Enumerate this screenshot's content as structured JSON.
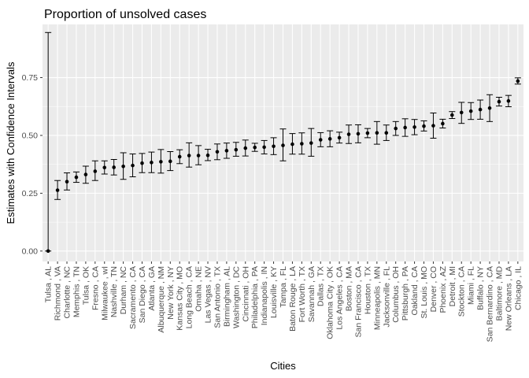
{
  "chart_data": {
    "type": "scatter",
    "title": "Proportion of unsolved cases",
    "xlabel": "Cities",
    "ylabel": "Estimates with Confidence Intervals",
    "ylim": [
      -0.045,
      0.98
    ],
    "yticks": [
      0.0,
      0.25,
      0.5,
      0.75
    ],
    "ytick_labels": [
      "0.00",
      "0.25",
      "0.50",
      "0.75"
    ],
    "grid": true,
    "background": "#ebebeb",
    "point_color": "#000000",
    "categories": [
      "Tulsa , AL",
      "Richmond , VA",
      "Charlotte , NC",
      "Memphis , TN",
      "Tulsa , OK",
      "Fresno , CA",
      "Milwaukee , wI",
      "Nashville , TN",
      "Durham , NC",
      "Sacramento , CA",
      "San Diego , CA",
      "Atlanta , GA",
      "Albuquerque , NM",
      "New York , NY",
      "Kansas City , MO",
      "Long Beach , CA",
      "Omaha , NE",
      "Las Vegas , NV",
      "San Antonio , TX",
      "Birmingham , AL",
      "Washington , DC",
      "Cincinnati , OH",
      "Philadelphia , PA",
      "Indianapolis , IN",
      "Louisville , KY",
      "Tampa , FL",
      "Baton Rouge , LA",
      "Fort Worth , TX",
      "Savannah , GA",
      "Dallas , TX",
      "Oklahoma City , OK",
      "Los Angeles , CA",
      "Boston , MA",
      "San Francisco , CA",
      "Houston , TX",
      "Minneapolis , MN",
      "Jacksonville , FL",
      "Columbus , OH",
      "Pittsburgh , PA",
      "Oakland , CA",
      "St. Louis , MO",
      "Denver , CO",
      "Phoenix , AZ",
      "Detroit , MI",
      "Stockton , CA",
      "Miami , FL",
      "Buffalo , NY",
      "San Bernardino , CA",
      "Baltimore , MD",
      "New Orleans , LA",
      "Chicago , IL"
    ],
    "estimate": [
      0.0,
      0.263,
      0.3,
      0.319,
      0.331,
      0.345,
      0.361,
      0.362,
      0.366,
      0.37,
      0.38,
      0.383,
      0.386,
      0.388,
      0.408,
      0.413,
      0.413,
      0.414,
      0.429,
      0.434,
      0.438,
      0.445,
      0.448,
      0.449,
      0.453,
      0.457,
      0.462,
      0.464,
      0.467,
      0.481,
      0.485,
      0.49,
      0.505,
      0.507,
      0.51,
      0.511,
      0.511,
      0.53,
      0.534,
      0.536,
      0.54,
      0.542,
      0.551,
      0.588,
      0.599,
      0.605,
      0.612,
      0.618,
      0.646,
      0.649,
      0.735
    ],
    "conf_low": [
      0.0,
      0.223,
      0.264,
      0.297,
      0.293,
      0.305,
      0.333,
      0.329,
      0.31,
      0.321,
      0.339,
      0.339,
      0.337,
      0.348,
      0.378,
      0.363,
      0.373,
      0.391,
      0.395,
      0.401,
      0.41,
      0.411,
      0.431,
      0.42,
      0.417,
      0.39,
      0.419,
      0.419,
      0.41,
      0.451,
      0.451,
      0.467,
      0.465,
      0.468,
      0.49,
      0.462,
      0.478,
      0.5,
      0.496,
      0.503,
      0.519,
      0.488,
      0.532,
      0.573,
      0.552,
      0.569,
      0.57,
      0.56,
      0.627,
      0.624,
      0.722
    ],
    "conf_high": [
      0.945,
      0.305,
      0.338,
      0.342,
      0.367,
      0.39,
      0.39,
      0.396,
      0.425,
      0.42,
      0.422,
      0.428,
      0.439,
      0.43,
      0.438,
      0.468,
      0.456,
      0.44,
      0.463,
      0.467,
      0.47,
      0.48,
      0.466,
      0.478,
      0.49,
      0.528,
      0.508,
      0.511,
      0.53,
      0.512,
      0.52,
      0.514,
      0.545,
      0.546,
      0.53,
      0.56,
      0.545,
      0.56,
      0.572,
      0.569,
      0.563,
      0.597,
      0.57,
      0.603,
      0.643,
      0.642,
      0.653,
      0.676,
      0.665,
      0.673,
      0.749
    ]
  }
}
